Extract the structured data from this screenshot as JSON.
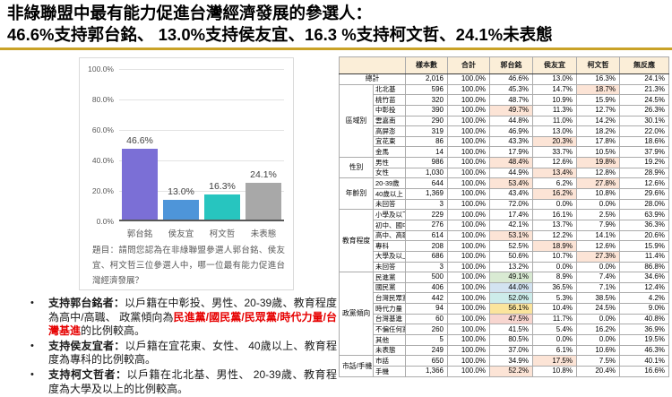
{
  "title": {
    "line1": "非綠聯盟中最有能力促進台灣經濟發展的參選人：",
    "line2": "46.6%支持郭台銘、 13.0%支持侯友宜、16.3 %支持柯文哲、24.1%未表態"
  },
  "colors": {
    "divider_gold": "#C9A227",
    "red_text": "#E60000",
    "axis_text": "#595959",
    "grid": "#E3E3E3"
  },
  "question": "題目：請問您認為在非綠聯盟參選人郭台銘、侯友宜、柯文哲三位參選人中，哪一位最有能力促進台灣經濟發展？",
  "insights": [
    {
      "segments": [
        {
          "text": "支持郭台銘者：",
          "bold": true,
          "red": false
        },
        {
          "text": "以戶籍在中彰投、男性、20-39歲、教育程度為高中/高職、 政黨傾向為",
          "bold": false,
          "red": false
        },
        {
          "text": "民進黨/國民黨/民眾黨/時代力量/台灣基進",
          "bold": true,
          "red": true
        },
        {
          "text": "的比例較高。",
          "bold": false,
          "red": false
        }
      ]
    },
    {
      "segments": [
        {
          "text": "支持侯友宜者：",
          "bold": true,
          "red": false
        },
        {
          "text": "以戶籍在宜花東、女性、 40歲以上、教育程度為專科的比例較高。",
          "bold": false,
          "red": false
        }
      ]
    },
    {
      "segments": [
        {
          "text": "支持柯文哲者：",
          "bold": true,
          "red": false
        },
        {
          "text": "以戶籍在北北基、男性、 20-39歲、教育程度為大學及以上的比例較高。",
          "bold": false,
          "red": false
        }
      ]
    }
  ],
  "chart_data": [
    {
      "type": "bar",
      "title": "",
      "xlabel": "",
      "ylabel": "",
      "categories": [
        "郭台銘",
        "侯友宜",
        "柯文哲",
        "未表態"
      ],
      "values": [
        46.6,
        13.0,
        16.3,
        24.1
      ],
      "value_labels": [
        "46.6%",
        "13.0%",
        "16.3%",
        "24.1%"
      ],
      "bar_colors": [
        "#7B6FD6",
        "#4E95D9",
        "#27C5BF",
        "#A8A8A8"
      ],
      "ylim": [
        0,
        100
      ],
      "ytick_labels": [
        "100.0%",
        "80.0%",
        "60.0%",
        "40.0%",
        "20.0%",
        "0.0%"
      ],
      "grid": true,
      "legend": "none"
    },
    {
      "type": "table",
      "corner": "",
      "headers": [
        "樣本數",
        "合計",
        "郭台銘",
        "侯友宜",
        "柯文哲",
        "無反應"
      ],
      "highlight_colors": {
        "salmon": "#FCE4D6",
        "green": "#D9EAD3",
        "blue": "#D3E3F1",
        "cyan": "#CDECEA",
        "yellow": "#FBE49C",
        "pink": "#F8D6D0"
      },
      "groups": [
        {
          "label": "總計",
          "rows": [
            {
              "label": "總計",
              "cells": [
                "2,016",
                "100.0%",
                "46.6%",
                "13.0%",
                "16.3%",
                "24.1%"
              ],
              "hl": {}
            }
          ]
        },
        {
          "label": "區域別",
          "rows": [
            {
              "label": "北北基",
              "cells": [
                "596",
                "100.0%",
                "45.3%",
                "14.7%",
                "18.7%",
                "21.3%"
              ],
              "hl": {
                "4": "salmon"
              }
            },
            {
              "label": "桃竹苗",
              "cells": [
                "320",
                "100.0%",
                "48.7%",
                "10.9%",
                "15.9%",
                "24.5%"
              ],
              "hl": {}
            },
            {
              "label": "中彰投",
              "cells": [
                "390",
                "100.0%",
                "49.7%",
                "11.3%",
                "12.7%",
                "26.3%"
              ],
              "hl": {
                "2": "salmon"
              }
            },
            {
              "label": "雲嘉南",
              "cells": [
                "290",
                "100.0%",
                "44.8%",
                "11.0%",
                "14.2%",
                "30.1%"
              ],
              "hl": {}
            },
            {
              "label": "高屏澎",
              "cells": [
                "319",
                "100.0%",
                "46.9%",
                "13.0%",
                "18.2%",
                "22.0%"
              ],
              "hl": {}
            },
            {
              "label": "宜花東",
              "cells": [
                "86",
                "100.0%",
                "43.3%",
                "20.3%",
                "17.8%",
                "18.6%"
              ],
              "hl": {
                "3": "salmon"
              }
            },
            {
              "label": "金馬",
              "cells": [
                "14",
                "100.0%",
                "17.9%",
                "33.7%",
                "10.5%",
                "37.9%"
              ],
              "hl": {}
            }
          ]
        },
        {
          "label": "性別",
          "rows": [
            {
              "label": "男性",
              "cells": [
                "986",
                "100.0%",
                "48.4%",
                "12.6%",
                "19.8%",
                "19.2%"
              ],
              "hl": {
                "2": "salmon",
                "4": "salmon"
              }
            },
            {
              "label": "女性",
              "cells": [
                "1,030",
                "100.0%",
                "44.9%",
                "13.4%",
                "12.8%",
                "28.9%"
              ],
              "hl": {
                "3": "salmon"
              }
            }
          ]
        },
        {
          "label": "年齡別",
          "rows": [
            {
              "label": "20-39歲",
              "cells": [
                "644",
                "100.0%",
                "53.4%",
                "6.2%",
                "27.8%",
                "12.6%"
              ],
              "hl": {
                "2": "salmon",
                "4": "salmon"
              }
            },
            {
              "label": "40歲以上",
              "cells": [
                "1,369",
                "100.0%",
                "43.4%",
                "16.2%",
                "10.8%",
                "29.6%"
              ],
              "hl": {
                "3": "salmon"
              }
            },
            {
              "label": "未回答",
              "cells": [
                "3",
                "100.0%",
                "72.0%",
                "0.0%",
                "0.0%",
                "28.0%"
              ],
              "hl": {}
            }
          ]
        },
        {
          "label": "教育程度",
          "rows": [
            {
              "label": "小學及以下",
              "cells": [
                "229",
                "100.0%",
                "17.4%",
                "16.1%",
                "2.5%",
                "63.9%"
              ],
              "hl": {}
            },
            {
              "label": "初中、國中",
              "cells": [
                "276",
                "100.0%",
                "42.1%",
                "13.7%",
                "7.9%",
                "36.3%"
              ],
              "hl": {}
            },
            {
              "label": "高中、高職",
              "cells": [
                "614",
                "100.0%",
                "53.1%",
                "12.2%",
                "14.1%",
                "20.6%"
              ],
              "hl": {
                "2": "salmon"
              }
            },
            {
              "label": "專科",
              "cells": [
                "208",
                "100.0%",
                "52.5%",
                "18.9%",
                "12.6%",
                "15.9%"
              ],
              "hl": {
                "3": "salmon"
              }
            },
            {
              "label": "大學及以上",
              "cells": [
                "686",
                "100.0%",
                "50.6%",
                "10.7%",
                "27.3%",
                "11.4%"
              ],
              "hl": {
                "4": "salmon"
              }
            },
            {
              "label": "未回答",
              "cells": [
                "3",
                "100.0%",
                "13.2%",
                "0.0%",
                "0.0%",
                "86.8%"
              ],
              "hl": {}
            }
          ]
        },
        {
          "label": "政黨傾向",
          "rows": [
            {
              "label": "民進黨",
              "cells": [
                "500",
                "100.0%",
                "49.1%",
                "8.9%",
                "7.4%",
                "34.6%"
              ],
              "hl": {
                "2": "green"
              }
            },
            {
              "label": "國民黨",
              "cells": [
                "406",
                "100.0%",
                "44.0%",
                "36.5%",
                "7.1%",
                "12.4%"
              ],
              "hl": {
                "2": "blue"
              }
            },
            {
              "label": "台灣民眾黨",
              "cells": [
                "442",
                "100.0%",
                "52.0%",
                "5.3%",
                "38.5%",
                "4.2%"
              ],
              "hl": {
                "2": "cyan"
              }
            },
            {
              "label": "時代力量",
              "cells": [
                "94",
                "100.0%",
                "56.1%",
                "10.4%",
                "24.5%",
                "9.0%"
              ],
              "hl": {
                "2": "yellow"
              }
            },
            {
              "label": "台灣基進",
              "cells": [
                "60",
                "100.0%",
                "47.5%",
                "11.7%",
                "0.0%",
                "40.8%"
              ],
              "hl": {
                "2": "pink"
              }
            },
            {
              "label": "不偏任何黨",
              "cells": [
                "260",
                "100.0%",
                "41.5%",
                "5.4%",
                "16.2%",
                "36.9%"
              ],
              "hl": {}
            },
            {
              "label": "其他",
              "cells": [
                "5",
                "100.0%",
                "80.5%",
                "0.0%",
                "0.0%",
                "19.5%"
              ],
              "hl": {}
            },
            {
              "label": "未表態",
              "cells": [
                "249",
                "100.0%",
                "37.0%",
                "6.1%",
                "10.6%",
                "46.3%"
              ],
              "hl": {}
            }
          ]
        },
        {
          "label": "市話/手機",
          "rows": [
            {
              "label": "市話",
              "cells": [
                "650",
                "100.0%",
                "34.9%",
                "17.5%",
                "7.5%",
                "40.1%"
              ],
              "hl": {
                "3": "salmon"
              }
            },
            {
              "label": "手機",
              "cells": [
                "1,366",
                "100.0%",
                "52.2%",
                "10.8%",
                "20.4%",
                "16.6%"
              ],
              "hl": {
                "2": "salmon"
              }
            }
          ]
        }
      ]
    }
  ]
}
